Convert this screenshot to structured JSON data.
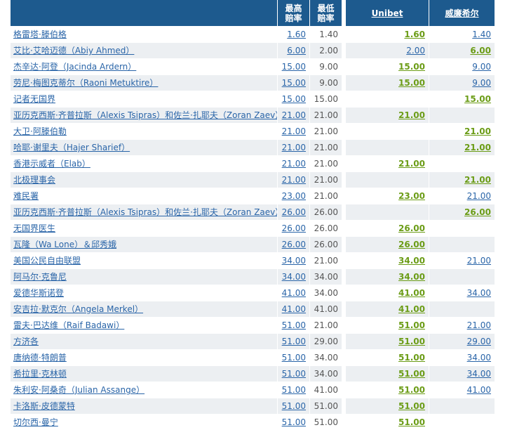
{
  "header": {
    "columns": [
      null,
      [
        "最高",
        "赔率"
      ],
      [
        "最低",
        "赔率"
      ],
      "Unibet",
      "威廉希尔"
    ]
  },
  "table": {
    "rows": [
      [
        "格雷塔·滕伯格",
        "1.60",
        "1.40",
        "1.60",
        "1.40"
      ],
      [
        "艾比·艾哈迈德（Abiy Ahmed）",
        "6.00",
        "2.00",
        "2.00",
        "6.00"
      ],
      [
        "杰辛达·阿登（Jacinda Ardern）",
        "15.00",
        "9.00",
        "15.00",
        "9.00"
      ],
      [
        "劳尼·梅图克蒂尔（Raoni Metuktire）",
        "15.00",
        "9.00",
        "15.00",
        "9.00"
      ],
      [
        "记者无国界",
        "15.00",
        "15.00",
        null,
        "15.00"
      ],
      [
        "亚历克西斯·齐普拉斯（Alexis Tsipras）和佐兰·扎耶夫（Zoran Zaev）",
        "21.00",
        "21.00",
        "21.00",
        null
      ],
      [
        "大卫·阿滕伯勒",
        "21.00",
        "21.00",
        null,
        "21.00"
      ],
      [
        "哈耶·谢里夫（Hajer Sharief）",
        "21.00",
        "21.00",
        null,
        "21.00"
      ],
      [
        "香港示威者（Elab）",
        "21.00",
        "21.00",
        "21.00",
        null
      ],
      [
        "北极理事会",
        "21.00",
        "21.00",
        null,
        "21.00"
      ],
      [
        "难民署",
        "23.00",
        "21.00",
        "23.00",
        "21.00"
      ],
      [
        "亚历克西斯·齐普拉斯（Alexis Tsipras）和佐兰·扎耶夫（Zoran Zaev）",
        "26.00",
        "26.00",
        null,
        "26.00"
      ],
      [
        "无国界医生",
        "26.00",
        "26.00",
        "26.00",
        null
      ],
      [
        "瓦隆（Wa Lone）＆邱秀娥",
        "26.00",
        "26.00",
        "26.00",
        null
      ],
      [
        "美国公民自由联盟",
        "34.00",
        "21.00",
        "34.00",
        "21.00"
      ],
      [
        "阿马尔·克鲁尼",
        "34.00",
        "34.00",
        "34.00",
        null
      ],
      [
        "爱德华斯诺登",
        "41.00",
        "34.00",
        "41.00",
        "34.00"
      ],
      [
        "安吉拉·默克尔（Angela Merkel）",
        "41.00",
        "41.00",
        "41.00",
        null
      ],
      [
        "雷夫·巴达维（Raif Badawi）",
        "51.00",
        "21.00",
        "51.00",
        "21.00"
      ],
      [
        "方济各",
        "51.00",
        "29.00",
        "51.00",
        "29.00"
      ],
      [
        "唐纳德·特朗普",
        "51.00",
        "34.00",
        "51.00",
        "34.00"
      ],
      [
        "希拉里·克林顿",
        "51.00",
        "34.00",
        "51.00",
        "34.00"
      ],
      [
        "朱利安·阿桑奇（Julian Assange）",
        "51.00",
        "41.00",
        "51.00",
        "41.00"
      ],
      [
        "卡洛斯·皮德蒙特",
        "51.00",
        "51.00",
        "51.00",
        null
      ],
      [
        "切尔西·曼宁",
        "51.00",
        "51.00",
        "51.00",
        null
      ]
    ]
  }
}
